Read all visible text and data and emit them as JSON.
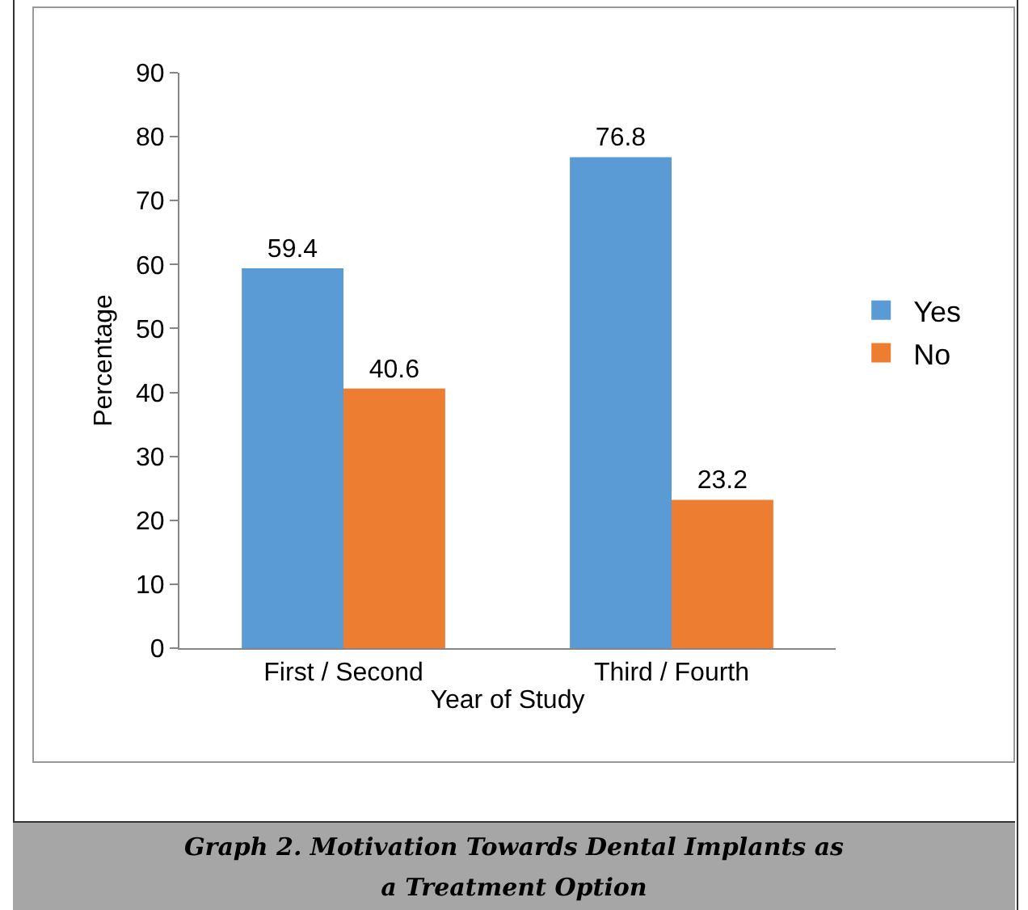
{
  "chart_data": {
    "type": "bar",
    "title": "Graph 2. Motivation Towards Dental Implants as a Treatment Option",
    "xlabel": "Year of Study",
    "ylabel": "Percentage",
    "categories": [
      "First / Second",
      "Third / Fourth"
    ],
    "series": [
      {
        "name": "Yes",
        "color": "#5b9bd5",
        "values": [
          59.4,
          76.8
        ]
      },
      {
        "name": "No",
        "color": "#ed7d31",
        "values": [
          40.6,
          23.2
        ]
      }
    ],
    "ylim": [
      0,
      90
    ],
    "yticks": [
      0,
      10,
      20,
      30,
      40,
      50,
      60,
      70,
      80,
      90
    ],
    "grid": false,
    "legend": "right",
    "data_labels": true
  }
}
